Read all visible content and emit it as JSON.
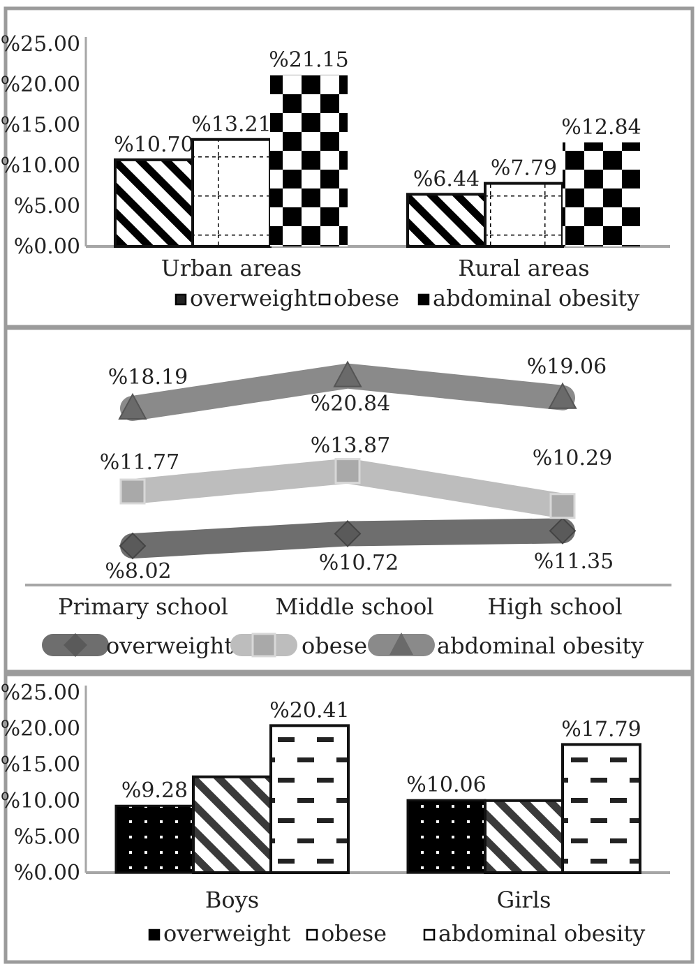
{
  "chart_data": [
    {
      "type": "bar",
      "categories": [
        "Urban areas",
        "Rural areas"
      ],
      "series": [
        {
          "name": "overweight",
          "values": [
            10.7,
            6.44
          ],
          "labels": [
            "%10.70",
            "%6.44"
          ]
        },
        {
          "name": "obese",
          "values": [
            13.21,
            7.79
          ],
          "labels": [
            "%13.21",
            "%7.79"
          ]
        },
        {
          "name": "abdominal obesity",
          "values": [
            21.15,
            12.84
          ],
          "labels": [
            "%21.15",
            "%12.84"
          ]
        }
      ],
      "yticks": [
        "%0.00",
        "%5.00",
        "%10.00",
        "%15.00",
        "%20.00",
        "%25.00"
      ],
      "ylim": [
        0,
        25
      ],
      "legend_position": "bottom",
      "grid": false
    },
    {
      "type": "line",
      "categories": [
        "Primary school",
        "Middle school",
        "High school"
      ],
      "series": [
        {
          "name": "overweight",
          "values": [
            8.02,
            10.72,
            11.35
          ],
          "labels": [
            "%8.02",
            "%10.72",
            "%11.35"
          ],
          "color": "#6e6e6e",
          "marker": "diamond"
        },
        {
          "name": "obese",
          "values": [
            11.77,
            13.87,
            10.29
          ],
          "labels": [
            "%11.77",
            "%13.87",
            "%10.29"
          ],
          "color": "#bdbdbd",
          "marker": "square"
        },
        {
          "name": "abdominal obesity",
          "values": [
            18.19,
            20.84,
            19.06
          ],
          "labels": [
            "%18.19",
            "%20.84",
            "%19.06"
          ],
          "color": "#8a8a8a",
          "marker": "triangle"
        }
      ],
      "legend_position": "bottom",
      "grid": false
    },
    {
      "type": "bar",
      "categories": [
        "Boys",
        "Girls"
      ],
      "series": [
        {
          "name": "overweight",
          "values": [
            9.28,
            10.06
          ],
          "labels": [
            "%9.28",
            "%10.06"
          ]
        },
        {
          "name": "obese",
          "values": [
            13.3,
            10.0
          ],
          "labels": [
            "",
            ""
          ]
        },
        {
          "name": "abdominal obesity",
          "values": [
            20.41,
            17.79
          ],
          "labels": [
            "%20.41",
            "%17.79"
          ]
        }
      ],
      "yticks": [
        "%0.00",
        "%5.00",
        "%10.00",
        "%15.00",
        "%20.00",
        "%25.00"
      ],
      "ylim": [
        0,
        25
      ],
      "legend_position": "bottom",
      "grid": false
    }
  ]
}
